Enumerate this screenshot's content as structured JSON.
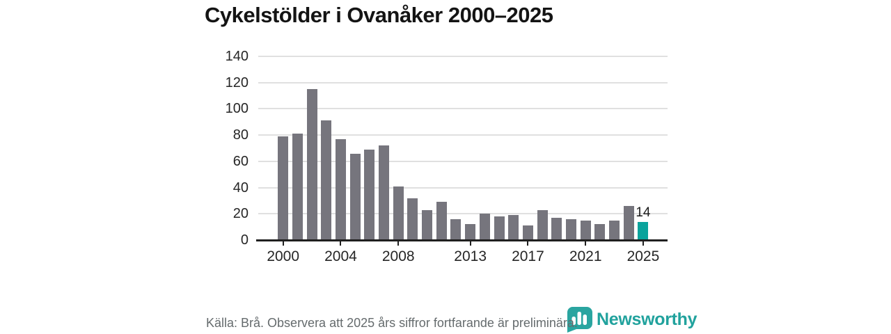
{
  "title": "Cykelstölder i Ovanåker 2000–2025",
  "footer": {
    "source_note": "Källa: Brå. Observera att 2025 års siffror fortfarande är preliminära."
  },
  "logo": {
    "brand": "Newsworthy",
    "icon": "newsworthy-bubble-bars-icon"
  },
  "colors": {
    "bar": "#76757d",
    "highlight": "#0aa39c",
    "brand_teal": "#21a29d",
    "grid": "#e0e0e0",
    "axis": "#1f1f1f",
    "title_text": "#141414",
    "footer_text": "#656b6d"
  },
  "chart_data": {
    "type": "bar",
    "title": "Cykelstölder i Ovanåker 2000–2025",
    "x": [
      2000,
      2001,
      2002,
      2003,
      2004,
      2005,
      2006,
      2007,
      2008,
      2009,
      2010,
      2011,
      2012,
      2013,
      2014,
      2015,
      2016,
      2017,
      2018,
      2019,
      2020,
      2021,
      2022,
      2023,
      2024,
      2025
    ],
    "values": [
      79,
      81,
      115,
      91,
      77,
      66,
      69,
      72,
      41,
      32,
      23,
      29,
      16,
      12,
      20,
      18,
      19,
      11,
      23,
      17,
      16,
      15,
      12,
      15,
      26,
      14
    ],
    "highlight_year": 2025,
    "annotation": {
      "year": 2025,
      "label": "14"
    },
    "xticks": [
      2000,
      2004,
      2008,
      2013,
      2017,
      2021,
      2025
    ],
    "yticks": [
      0,
      20,
      40,
      60,
      80,
      100,
      120,
      140
    ],
    "ylim": [
      0,
      140
    ],
    "grid": true,
    "legend": false
  }
}
